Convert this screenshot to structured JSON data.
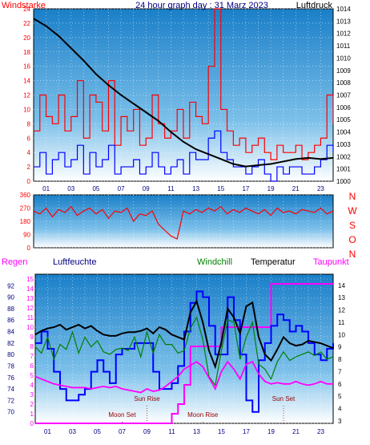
{
  "colors": {
    "red": "#ff0000",
    "blue": "#0000ff",
    "navy": "#000080",
    "black": "#000000",
    "magenta": "#ff00ff",
    "green": "#008000",
    "darkred": "#990000",
    "bg_top": "#1a7fc8",
    "bg_bottom": "#ffffff"
  },
  "chart_data": [
    {
      "type": "line",
      "panel": "wind-pressure",
      "title": "24 hour graph day : 31 Marz 2023",
      "left_axis_label": "Windstarke",
      "right_axis_label": "Luftdruck",
      "left_ticks": [
        "0",
        "2",
        "4",
        "6",
        "8",
        "10",
        "12",
        "14",
        "16",
        "18",
        "20",
        "22",
        "24"
      ],
      "right_ticks": [
        "1000",
        "1001",
        "1002",
        "1003",
        "1004",
        "1005",
        "1006",
        "1007",
        "1008",
        "1009",
        "1010",
        "1011",
        "1012",
        "1013",
        "1014"
      ],
      "hour_labels": [
        "01",
        "03",
        "05",
        "07",
        "09",
        "11",
        "13",
        "15",
        "17",
        "19",
        "21",
        "23"
      ],
      "left_range": [
        0,
        24
      ],
      "right_range": [
        1000,
        1014
      ],
      "series": [
        {
          "key": "gust",
          "x": [
            0,
            0.5,
            1,
            1.5,
            2,
            2.5,
            3,
            3.5,
            4,
            4.5,
            5,
            5.5,
            6,
            6.5,
            7,
            7.5,
            8,
            8.5,
            9,
            9.5,
            10,
            10.5,
            11,
            11.5,
            12,
            12.5,
            13,
            13.5,
            14,
            14.5,
            15,
            15.5,
            16,
            16.5,
            17,
            17.5,
            18,
            18.5,
            19,
            19.5,
            20,
            20.5,
            21,
            21.5,
            22,
            22.5,
            23,
            23.5,
            24
          ],
          "values": [
            7,
            12,
            9,
            8,
            12,
            7,
            9,
            14,
            6,
            12,
            11,
            7,
            14,
            5,
            9,
            7,
            10,
            5,
            6,
            12,
            8,
            6,
            7,
            10,
            6,
            11,
            9,
            8,
            16,
            24,
            10,
            7,
            5,
            6,
            4,
            5,
            6,
            4,
            3,
            5,
            4,
            4,
            5,
            3,
            4,
            5,
            6,
            12,
            8
          ]
        },
        {
          "key": "wind",
          "x": [
            0,
            0.5,
            1,
            1.5,
            2,
            2.5,
            3,
            3.5,
            4,
            4.5,
            5,
            5.5,
            6,
            6.5,
            7,
            7.5,
            8,
            8.5,
            9,
            9.5,
            10,
            10.5,
            11,
            11.5,
            12,
            12.5,
            13,
            13.5,
            14,
            14.5,
            15,
            15.5,
            16,
            16.5,
            17,
            17.5,
            18,
            18.5,
            19,
            19.5,
            20,
            20.5,
            21,
            21.5,
            22,
            22.5,
            23,
            23.5,
            24
          ],
          "values": [
            2,
            4,
            1,
            3,
            4,
            2,
            3,
            5,
            1,
            4,
            2,
            3,
            5,
            1,
            2,
            2,
            3,
            1,
            2,
            4,
            2,
            1,
            2,
            3,
            1,
            4,
            3,
            3,
            6,
            7,
            4,
            3,
            2,
            2,
            1,
            2,
            3,
            1,
            0,
            2,
            1,
            2,
            2,
            1,
            1,
            2,
            3,
            5,
            4
          ]
        },
        {
          "key": "pressure",
          "x": [
            0,
            1,
            2,
            3,
            4,
            5,
            6,
            7,
            8,
            9,
            10,
            11,
            12,
            13,
            14,
            15,
            16,
            17,
            18,
            19,
            20,
            21,
            22,
            23,
            24
          ],
          "values": [
            1013.2,
            1012.6,
            1011.8,
            1010.8,
            1009.8,
            1008.7,
            1007.8,
            1007.0,
            1006.3,
            1005.6,
            1004.9,
            1004.0,
            1003.2,
            1002.6,
            1002.2,
            1001.8,
            1001.4,
            1001.2,
            1001.3,
            1001.4,
            1001.6,
            1001.8,
            1001.9,
            1001.8,
            1001.9
          ]
        }
      ]
    },
    {
      "type": "line",
      "panel": "wind-direction",
      "left_ticks": [
        "0",
        "90",
        "180",
        "270",
        "360"
      ],
      "left_range": [
        0,
        360
      ],
      "right_labels": [
        "N",
        "W",
        "S",
        "O",
        "N"
      ],
      "series": [
        {
          "key": "direction",
          "x": [
            0,
            0.5,
            1,
            1.5,
            2,
            2.5,
            3,
            3.5,
            4,
            4.5,
            5,
            5.5,
            6,
            6.5,
            7,
            7.5,
            8,
            8.5,
            9,
            9.5,
            10,
            10.5,
            11,
            11.5,
            12,
            12.5,
            13,
            13.5,
            14,
            14.5,
            15,
            15.5,
            16,
            16.5,
            17,
            17.5,
            18,
            18.5,
            19,
            19.5,
            20,
            20.5,
            21,
            21.5,
            22,
            22.5,
            23,
            23.5,
            24
          ],
          "values": [
            250,
            230,
            270,
            210,
            260,
            240,
            280,
            220,
            250,
            270,
            230,
            260,
            200,
            250,
            240,
            270,
            180,
            230,
            220,
            250,
            160,
            120,
            80,
            60,
            250,
            230,
            260,
            240,
            270,
            250,
            280,
            230,
            260,
            240,
            270,
            250,
            230,
            260,
            220,
            270,
            240,
            250,
            230,
            260,
            250,
            240,
            270,
            230,
            250
          ]
        }
      ]
    },
    {
      "type": "line",
      "panel": "humidity-temperature",
      "labels": {
        "regen": "Regen",
        "luftfeuchte": "Luftfeuchte",
        "windchill": "Windchill",
        "temperatur": "Temperatur",
        "taupunkt": "Taupunkt"
      },
      "left_rain_ticks": [
        "0",
        "1",
        "2",
        "3",
        "4",
        "5",
        "6",
        "7",
        "8",
        "9",
        "10",
        "11",
        "12",
        "13",
        "14",
        "15"
      ],
      "left_humidity_ticks": [
        "70",
        "72",
        "74",
        "76",
        "78",
        "80",
        "82",
        "84",
        "86",
        "88",
        "90",
        "92"
      ],
      "right_temp_ticks": [
        "3",
        "4",
        "5",
        "6",
        "7",
        "8",
        "9",
        "10",
        "11",
        "12",
        "13",
        "14"
      ],
      "hour_labels": [
        "01",
        "03",
        "05",
        "07",
        "09",
        "11",
        "13",
        "15",
        "17",
        "19",
        "21",
        "23"
      ],
      "annotations": [
        {
          "text": "Moon Set",
          "x": 7
        },
        {
          "text": "Sun Rise",
          "x": 9
        },
        {
          "text": "Moon Rise",
          "x": 13.5
        },
        {
          "text": "Sun Set",
          "x": 20
        }
      ],
      "series": [
        {
          "key": "regen",
          "x": [
            0,
            8,
            9,
            10,
            11,
            11.5,
            12,
            12.5,
            13,
            14,
            15,
            16,
            17,
            18,
            19,
            20,
            21,
            22,
            23,
            24
          ],
          "values": [
            0,
            0,
            0,
            0,
            1,
            2,
            4,
            8,
            8,
            8,
            10,
            10,
            10,
            10,
            14.5,
            14.5,
            14.5,
            14.5,
            14.5,
            14.5
          ]
        },
        {
          "key": "luftfeuchte",
          "x": [
            0,
            0.5,
            1,
            1.5,
            2,
            2.5,
            3,
            3.5,
            4,
            4.5,
            5,
            5.5,
            6,
            6.5,
            7,
            7.5,
            8,
            8.5,
            9,
            9.5,
            10,
            10.5,
            11,
            11.5,
            12,
            12.5,
            13,
            13.5,
            14,
            14.5,
            15,
            15.5,
            16,
            16.5,
            17,
            17.5,
            18,
            18.5,
            19,
            19.5,
            20,
            20.5,
            21,
            21.5,
            22,
            22.5,
            23,
            23.5,
            24
          ],
          "values": [
            82,
            84,
            81,
            77,
            74,
            72,
            72,
            73,
            74,
            77,
            79,
            77,
            75,
            80,
            81,
            81,
            82,
            82,
            82,
            77,
            74,
            74,
            75,
            78,
            84,
            89,
            91,
            90,
            85,
            80,
            80,
            90,
            86,
            80,
            72,
            70,
            79,
            82,
            85,
            87,
            86,
            84,
            85,
            84,
            82,
            80,
            79,
            81,
            82
          ]
        },
        {
          "key": "temperatur",
          "x": [
            0,
            0.5,
            1,
            1.5,
            2,
            2.5,
            3,
            3.5,
            4,
            4.5,
            5,
            5.5,
            6,
            6.5,
            7,
            7.5,
            8,
            8.5,
            9,
            9.5,
            10,
            10.5,
            11,
            11.5,
            12,
            12.5,
            13,
            13.5,
            14,
            14.5,
            15,
            15.5,
            16,
            16.5,
            17,
            17.5,
            18,
            18.5,
            19,
            19.5,
            20,
            20.5,
            21,
            21.5,
            22,
            22.5,
            23,
            23.5,
            24
          ],
          "values": [
            10.0,
            10.3,
            10.5,
            10.6,
            10.8,
            10.4,
            10.6,
            10.8,
            10.5,
            10.7,
            10.3,
            10.0,
            9.9,
            9.9,
            10.1,
            10.2,
            10.2,
            10.3,
            10.5,
            10.1,
            10.6,
            10.4,
            10.0,
            9.8,
            9.6,
            11.8,
            12.7,
            11.0,
            8.7,
            7.4,
            9.4,
            12.1,
            11.4,
            10.1,
            12.3,
            12.6,
            9.8,
            8.4,
            7.9,
            8.8,
            9.8,
            9.3,
            9.1,
            9.2,
            9.5,
            9.4,
            9.3,
            9.1,
            8.9
          ]
        },
        {
          "key": "windchill",
          "x": [
            0,
            0.5,
            1,
            1.5,
            2,
            2.5,
            3,
            3.5,
            4,
            4.5,
            5,
            5.5,
            6,
            6.5,
            7,
            7.5,
            8,
            8.5,
            9,
            9.5,
            10,
            10.5,
            11,
            11.5,
            12,
            12.5,
            13,
            13.5,
            14,
            14.5,
            15,
            15.5,
            16,
            16.5,
            17,
            17.5,
            18,
            18.5,
            19,
            19.5,
            20,
            20.5,
            21,
            21.5,
            22,
            22.5,
            23,
            23.5,
            24
          ],
          "values": [
            9.0,
            8.5,
            9.8,
            8.0,
            9.2,
            8.8,
            10.2,
            8.5,
            9.8,
            9.0,
            9.5,
            8.6,
            8.4,
            8.8,
            8.9,
            8.7,
            9.8,
            8.2,
            10.2,
            8.5,
            10.0,
            9.2,
            9.2,
            8.5,
            8.7,
            10.5,
            11.4,
            9.6,
            6.6,
            5.9,
            8.7,
            11.2,
            11.0,
            8.0,
            9.8,
            11.0,
            7.6,
            7.2,
            6.4,
            7.8,
            8.6,
            7.9,
            8.2,
            8.4,
            8.6,
            8.3,
            8.6,
            8.0,
            8.2
          ]
        },
        {
          "key": "taupunkt",
          "x": [
            0,
            0.5,
            1,
            1.5,
            2,
            2.5,
            3,
            3.5,
            4,
            4.5,
            5,
            5.5,
            6,
            6.5,
            7,
            7.5,
            8,
            8.5,
            9,
            9.5,
            10,
            10.5,
            11,
            11.5,
            12,
            12.5,
            13,
            13.5,
            14,
            14.5,
            15,
            15.5,
            16,
            16.5,
            17,
            17.5,
            18,
            18.5,
            19,
            19.5,
            20,
            20.5,
            21,
            21.5,
            22,
            22.5,
            23,
            23.5,
            24
          ],
          "values": [
            6.6,
            6.4,
            6.2,
            6.0,
            5.9,
            5.8,
            5.7,
            5.7,
            5.7,
            5.6,
            5.7,
            5.8,
            5.7,
            5.8,
            5.6,
            5.5,
            5.4,
            5.3,
            5.6,
            5.4,
            5.5,
            5.8,
            6.2,
            6.6,
            7.2,
            7.5,
            7.8,
            7.4,
            6.5,
            5.6,
            7.0,
            7.8,
            7.2,
            6.4,
            7.6,
            7.8,
            6.8,
            6.2,
            6.0,
            6.1,
            6.0,
            6.0,
            6.2,
            6.0,
            5.9,
            6.0,
            6.2,
            6.0,
            6.0
          ]
        }
      ]
    }
  ]
}
